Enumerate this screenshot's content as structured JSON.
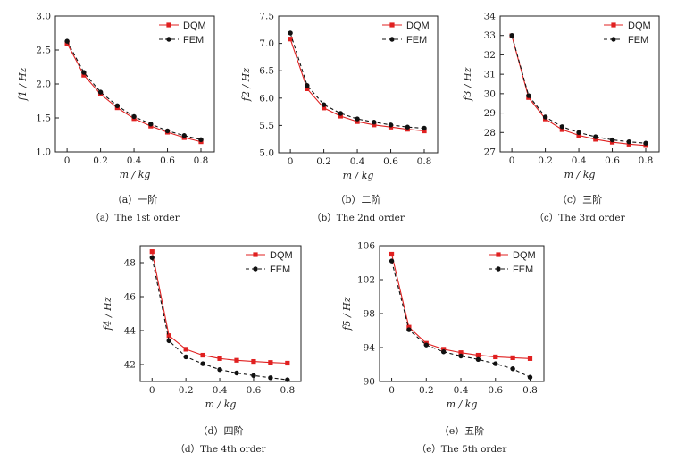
{
  "colors": {
    "dqm": "#e02020",
    "fem": "#111111",
    "axis": "#222222"
  },
  "legend_placement": "top-right",
  "chart_data": [
    {
      "type": "line",
      "xlabel": "m / kg",
      "ylabel": "f1 / Hz",
      "x": [
        0,
        0.1,
        0.2,
        0.3,
        0.4,
        0.5,
        0.6,
        0.7,
        0.8
      ],
      "xlim": [
        -0.07,
        0.88
      ],
      "ylim": [
        1.0,
        3.0
      ],
      "xticks": [
        "0",
        "0.2",
        "0.4",
        "0.6",
        "0.8"
      ],
      "yticks": [
        "1.0",
        "1.5",
        "2.0",
        "2.5",
        "3.0"
      ],
      "series": [
        {
          "name": "DQM",
          "values": [
            2.6,
            2.13,
            1.85,
            1.65,
            1.49,
            1.38,
            1.29,
            1.21,
            1.15
          ]
        },
        {
          "name": "FEM",
          "values": [
            2.63,
            2.17,
            1.88,
            1.68,
            1.52,
            1.41,
            1.31,
            1.24,
            1.18
          ]
        }
      ],
      "caption_cn": "（a）一阶",
      "caption_en": "（a）The 1st order"
    },
    {
      "type": "line",
      "xlabel": "m / kg",
      "ylabel": "f2 / Hz",
      "x": [
        0,
        0.1,
        0.2,
        0.3,
        0.4,
        0.5,
        0.6,
        0.7,
        0.8
      ],
      "xlim": [
        -0.07,
        0.88
      ],
      "ylim": [
        5.0,
        7.5
      ],
      "xticks": [
        "0",
        "0.2",
        "0.4",
        "0.6",
        "0.8"
      ],
      "yticks": [
        "5.0",
        "5.5",
        "6.0",
        "6.5",
        "7.0",
        "7.5"
      ],
      "series": [
        {
          "name": "DQM",
          "values": [
            7.08,
            6.17,
            5.82,
            5.67,
            5.57,
            5.51,
            5.47,
            5.43,
            5.4
          ]
        },
        {
          "name": "FEM",
          "values": [
            7.19,
            6.23,
            5.88,
            5.72,
            5.62,
            5.56,
            5.51,
            5.47,
            5.45
          ]
        }
      ],
      "caption_cn": "（b）二阶",
      "caption_en": "（b）The 2nd order"
    },
    {
      "type": "line",
      "xlabel": "m / kg",
      "ylabel": "f3 / Hz",
      "x": [
        0,
        0.1,
        0.2,
        0.3,
        0.4,
        0.5,
        0.6,
        0.7,
        0.8
      ],
      "xlim": [
        -0.07,
        0.88
      ],
      "ylim": [
        27,
        34
      ],
      "xticks": [
        "0",
        "0.2",
        "0.4",
        "0.6",
        "0.8"
      ],
      "yticks": [
        "27",
        "28",
        "29",
        "30",
        "31",
        "32",
        "33",
        "34"
      ],
      "series": [
        {
          "name": "DQM",
          "values": [
            32.98,
            29.8,
            28.7,
            28.15,
            27.85,
            27.65,
            27.5,
            27.4,
            27.33
          ]
        },
        {
          "name": "FEM",
          "values": [
            33.0,
            29.9,
            28.8,
            28.3,
            28.0,
            27.78,
            27.62,
            27.52,
            27.45
          ]
        }
      ],
      "caption_cn": "（c）三阶",
      "caption_en": "（c）The 3rd order"
    },
    {
      "type": "line",
      "xlabel": "m / kg",
      "ylabel": "f4 / Hz",
      "x": [
        0,
        0.1,
        0.2,
        0.3,
        0.4,
        0.5,
        0.6,
        0.7,
        0.8
      ],
      "xlim": [
        -0.07,
        0.88
      ],
      "ylim": [
        41,
        49
      ],
      "xticks": [
        "0",
        "0.2",
        "0.4",
        "0.6",
        "0.8"
      ],
      "yticks": [
        "42",
        "44",
        "46",
        "48"
      ],
      "series": [
        {
          "name": "DQM",
          "values": [
            48.65,
            43.7,
            42.9,
            42.55,
            42.35,
            42.25,
            42.18,
            42.12,
            42.08
          ]
        },
        {
          "name": "FEM",
          "values": [
            48.3,
            43.4,
            42.45,
            42.05,
            41.7,
            41.5,
            41.35,
            41.22,
            41.1
          ]
        }
      ],
      "caption_cn": "（d）四阶",
      "caption_en": "（d）The 4th order"
    },
    {
      "type": "line",
      "xlabel": "m / kg",
      "ylabel": "f5 / Hz",
      "x": [
        0,
        0.1,
        0.2,
        0.3,
        0.4,
        0.5,
        0.6,
        0.7,
        0.8
      ],
      "xlim": [
        -0.07,
        0.88
      ],
      "ylim": [
        90,
        106
      ],
      "xticks": [
        "0",
        "0.2",
        "0.4",
        "0.6",
        "0.8"
      ],
      "yticks": [
        "90",
        "94",
        "98",
        "102",
        "106"
      ],
      "series": [
        {
          "name": "DQM",
          "values": [
            105.0,
            96.4,
            94.5,
            93.8,
            93.4,
            93.1,
            92.9,
            92.8,
            92.7
          ]
        },
        {
          "name": "FEM",
          "values": [
            104.2,
            96.1,
            94.3,
            93.5,
            93.0,
            92.6,
            92.1,
            91.5,
            90.5
          ]
        }
      ],
      "caption_cn": "（e）五阶",
      "caption_en": "（e）The 5th order"
    }
  ]
}
